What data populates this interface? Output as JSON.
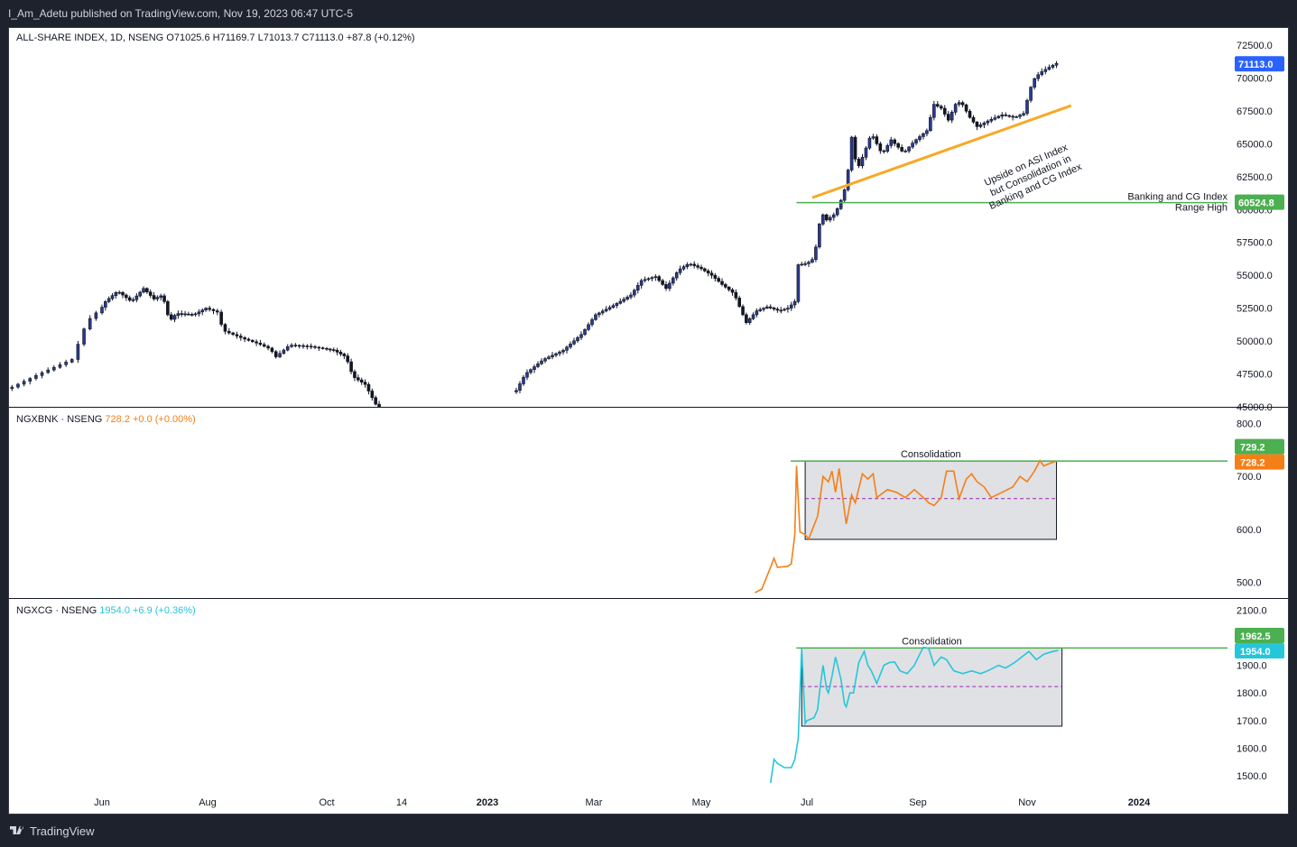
{
  "header": {
    "published": "I_Am_Adetu published on TradingView.com, Nov 19, 2023 06:47 UTC-5"
  },
  "footer": {
    "brand": "TradingView"
  },
  "colors": {
    "candle": "#131722",
    "candle_up_body": "#2a3a8f",
    "bank_line": "#f57f17",
    "cg_line": "#26c6da",
    "range_line": "#4caf50",
    "consolidation_fill": "#e0e1e4",
    "consolidation_mid": "#9c27b0",
    "trend_line": "#f9a825",
    "range_label": "#2962ff"
  },
  "chart_data": [
    {
      "type": "candlestick",
      "title": "ALL-SHARE INDEX, 1D, NSENG",
      "ohlc_text": [
        "O71025.6",
        "H71169.7",
        "L71013.7",
        "C71113.0",
        "+87.8 (+0.12%)"
      ],
      "x_ticks": [
        "Jun",
        "Aug",
        "Oct",
        "14",
        "2023",
        "Mar",
        "May",
        "Jul",
        "Sep",
        "Nov",
        "2024"
      ],
      "y_ticks": [
        "72500.0",
        "70000.0",
        "67500.0",
        "65000.0",
        "62500.0",
        "60000.0",
        "57500.0",
        "55000.0",
        "52500.0",
        "50000.0",
        "47500.0",
        "45000.0"
      ],
      "ylim": [
        45000,
        73500
      ],
      "close_series": [
        [
          "2022-05-02",
          46500
        ],
        [
          "2022-05-12",
          47600
        ],
        [
          "2022-05-22",
          48600
        ],
        [
          "2022-05-27",
          51500
        ],
        [
          "2022-06-03",
          53000
        ],
        [
          "2022-06-10",
          53800
        ],
        [
          "2022-06-18",
          53000
        ],
        [
          "2022-06-25",
          54000
        ],
        [
          "2022-07-01",
          53200
        ],
        [
          "2022-07-06",
          53500
        ],
        [
          "2022-07-10",
          51500
        ],
        [
          "2022-07-14",
          52100
        ],
        [
          "2022-07-24",
          52000
        ],
        [
          "2022-07-31",
          52500
        ],
        [
          "2022-08-06",
          52200
        ],
        [
          "2022-08-09",
          50800
        ],
        [
          "2022-08-14",
          50500
        ],
        [
          "2022-08-19",
          50200
        ],
        [
          "2022-08-27",
          49800
        ],
        [
          "2022-09-02",
          49400
        ],
        [
          "2022-09-05",
          48800
        ],
        [
          "2022-09-12",
          49700
        ],
        [
          "2022-09-22",
          49600
        ],
        [
          "2022-10-05",
          49300
        ],
        [
          "2022-10-12",
          48800
        ],
        [
          "2022-10-16",
          47300
        ],
        [
          "2022-10-23",
          46700
        ],
        [
          "2022-10-29",
          45200
        ],
        [
          "2022-11-01",
          44500
        ],
        [
          "2023-01-16",
          46000
        ],
        [
          "2023-01-22",
          47500
        ],
        [
          "2023-02-01",
          48600
        ],
        [
          "2023-02-12",
          49300
        ],
        [
          "2023-02-22",
          50500
        ],
        [
          "2023-03-02",
          52000
        ],
        [
          "2023-03-12",
          52700
        ],
        [
          "2023-03-22",
          53500
        ],
        [
          "2023-03-28",
          54600
        ],
        [
          "2023-04-05",
          54900
        ],
        [
          "2023-04-11",
          54000
        ],
        [
          "2023-04-18",
          55400
        ],
        [
          "2023-04-24",
          55900
        ],
        [
          "2023-05-01",
          55500
        ],
        [
          "2023-05-07",
          55000
        ],
        [
          "2023-05-13",
          54300
        ],
        [
          "2023-05-20",
          53600
        ],
        [
          "2023-05-24",
          52300
        ],
        [
          "2023-05-27",
          51400
        ],
        [
          "2023-06-02",
          52300
        ],
        [
          "2023-06-08",
          52600
        ],
        [
          "2023-06-15",
          52300
        ],
        [
          "2023-06-20",
          52500
        ],
        [
          "2023-06-24",
          53000
        ],
        [
          "2023-06-26",
          55800
        ],
        [
          "2023-07-01",
          55900
        ],
        [
          "2023-07-05",
          56300
        ],
        [
          "2023-07-07",
          58000
        ],
        [
          "2023-07-09",
          59800
        ],
        [
          "2023-07-12",
          59200
        ],
        [
          "2023-07-16",
          59600
        ],
        [
          "2023-07-19",
          60300
        ],
        [
          "2023-07-22",
          61500
        ],
        [
          "2023-07-24",
          63000
        ],
        [
          "2023-07-26",
          65500
        ],
        [
          "2023-07-29",
          63000
        ],
        [
          "2023-08-02",
          64300
        ],
        [
          "2023-08-06",
          65800
        ],
        [
          "2023-08-12",
          64200
        ],
        [
          "2023-08-17",
          65300
        ],
        [
          "2023-08-24",
          64300
        ],
        [
          "2023-08-30",
          65200
        ],
        [
          "2023-09-06",
          66000
        ],
        [
          "2023-09-10",
          68000
        ],
        [
          "2023-09-14",
          67700
        ],
        [
          "2023-09-18",
          66800
        ],
        [
          "2023-09-22",
          68000
        ],
        [
          "2023-09-25",
          68200
        ],
        [
          "2023-09-30",
          67000
        ],
        [
          "2023-10-04",
          66300
        ],
        [
          "2023-10-11",
          66800
        ],
        [
          "2023-10-18",
          67200
        ],
        [
          "2023-10-25",
          67000
        ],
        [
          "2023-10-30",
          67300
        ],
        [
          "2023-11-04",
          69800
        ],
        [
          "2023-11-08",
          70400
        ],
        [
          "2023-11-14",
          70900
        ],
        [
          "2023-11-17",
          71113
        ]
      ],
      "last_value_label": "71113.0",
      "range_high_value": 60524.8,
      "range_high_label": "60524.8",
      "range_high_text": [
        "Banking and CG Index",
        "Range High"
      ],
      "annotation": [
        "Upside on ASI Index",
        "but Consolidation in",
        "Banking and CG Index"
      ]
    },
    {
      "type": "line",
      "title": "NGXBNK · NSENG",
      "value_text": "728.2",
      "change_text": "+0.0 (+0.00%)",
      "y_ticks": [
        "800.0",
        "700.0",
        "600.0",
        "500.0"
      ],
      "ylim": [
        470,
        830
      ],
      "series": [
        [
          "2023-06-01",
          480
        ],
        [
          "2023-06-05",
          487
        ],
        [
          "2023-06-09",
          520
        ],
        [
          "2023-06-12",
          545
        ],
        [
          "2023-06-14",
          528
        ],
        [
          "2023-06-20",
          530
        ],
        [
          "2023-06-22",
          535
        ],
        [
          "2023-06-24",
          590
        ],
        [
          "2023-06-25",
          720
        ],
        [
          "2023-06-27",
          595
        ],
        [
          "2023-06-30",
          590
        ],
        [
          "2023-07-02",
          582
        ],
        [
          "2023-07-07",
          625
        ],
        [
          "2023-07-10",
          700
        ],
        [
          "2023-07-13",
          690
        ],
        [
          "2023-07-15",
          710
        ],
        [
          "2023-07-17",
          670
        ],
        [
          "2023-07-19",
          715
        ],
        [
          "2023-07-21",
          660
        ],
        [
          "2023-07-23",
          610
        ],
        [
          "2023-07-26",
          665
        ],
        [
          "2023-07-28",
          650
        ],
        [
          "2023-08-01",
          705
        ],
        [
          "2023-08-04",
          695
        ],
        [
          "2023-08-07",
          705
        ],
        [
          "2023-08-09",
          660
        ],
        [
          "2023-08-15",
          675
        ],
        [
          "2023-08-20",
          670
        ],
        [
          "2023-08-25",
          660
        ],
        [
          "2023-08-30",
          675
        ],
        [
          "2023-09-04",
          660
        ],
        [
          "2023-09-07",
          650
        ],
        [
          "2023-09-10",
          645
        ],
        [
          "2023-09-14",
          660
        ],
        [
          "2023-09-17",
          710
        ],
        [
          "2023-09-21",
          710
        ],
        [
          "2023-09-24",
          658
        ],
        [
          "2023-09-28",
          695
        ],
        [
          "2023-10-01",
          705
        ],
        [
          "2023-10-04",
          690
        ],
        [
          "2023-10-08",
          680
        ],
        [
          "2023-10-12",
          660
        ],
        [
          "2023-10-18",
          670
        ],
        [
          "2023-10-24",
          680
        ],
        [
          "2023-10-28",
          700
        ],
        [
          "2023-11-01",
          690
        ],
        [
          "2023-11-05",
          710
        ],
        [
          "2023-11-08",
          730
        ],
        [
          "2023-11-10",
          720
        ],
        [
          "2023-11-16",
          728.2
        ],
        [
          "2023-11-17",
          728.2
        ]
      ],
      "box": {
        "x0": "2023-06-30",
        "x1": "2023-11-17",
        "y0": 581,
        "y1": 729.2,
        "mid": 658
      },
      "box_label": "Consolidation",
      "range_line_value": 729.2,
      "range_label": "729.2",
      "last_label": "728.2"
    },
    {
      "type": "line",
      "title": "NGXCG · NSENG",
      "value_text": "1954.0",
      "change_text": "+6.9 (+0.36%)",
      "y_ticks": [
        "2100.0",
        "1900.0",
        "1800.0",
        "1700.0",
        "1600.0",
        "1500.0"
      ],
      "ylim": [
        1455,
        2140
      ],
      "series": [
        [
          "2023-06-10",
          1475
        ],
        [
          "2023-06-12",
          1560
        ],
        [
          "2023-06-14",
          1545
        ],
        [
          "2023-06-18",
          1530
        ],
        [
          "2023-06-22",
          1530
        ],
        [
          "2023-06-24",
          1560
        ],
        [
          "2023-06-26",
          1635
        ],
        [
          "2023-06-28",
          1962.5
        ],
        [
          "2023-06-30",
          1690
        ],
        [
          "2023-07-01",
          1700
        ],
        [
          "2023-07-05",
          1710
        ],
        [
          "2023-07-07",
          1740
        ],
        [
          "2023-07-08",
          1800
        ],
        [
          "2023-07-10",
          1900
        ],
        [
          "2023-07-12",
          1815
        ],
        [
          "2023-07-13",
          1800
        ],
        [
          "2023-07-15",
          1860
        ],
        [
          "2023-07-17",
          1930
        ],
        [
          "2023-07-20",
          1850
        ],
        [
          "2023-07-22",
          1760
        ],
        [
          "2023-07-23",
          1750
        ],
        [
          "2023-07-25",
          1800
        ],
        [
          "2023-07-27",
          1800
        ],
        [
          "2023-07-30",
          1910
        ],
        [
          "2023-08-02",
          1950
        ],
        [
          "2023-08-04",
          1900
        ],
        [
          "2023-08-06",
          1880
        ],
        [
          "2023-08-09",
          1835
        ],
        [
          "2023-08-13",
          1900
        ],
        [
          "2023-08-16",
          1910
        ],
        [
          "2023-08-19",
          1912
        ],
        [
          "2023-08-22",
          1880
        ],
        [
          "2023-08-26",
          1870
        ],
        [
          "2023-08-30",
          1900
        ],
        [
          "2023-09-02",
          1940
        ],
        [
          "2023-09-04",
          1965
        ],
        [
          "2023-09-07",
          1962
        ],
        [
          "2023-09-10",
          1900
        ],
        [
          "2023-09-14",
          1930
        ],
        [
          "2023-09-17",
          1920
        ],
        [
          "2023-09-21",
          1880
        ],
        [
          "2023-09-26",
          1870
        ],
        [
          "2023-10-01",
          1880
        ],
        [
          "2023-10-06",
          1870
        ],
        [
          "2023-10-10",
          1880
        ],
        [
          "2023-10-16",
          1900
        ],
        [
          "2023-10-20",
          1890
        ],
        [
          "2023-10-25",
          1910
        ],
        [
          "2023-10-29",
          1930
        ],
        [
          "2023-11-02",
          1950
        ],
        [
          "2023-11-06",
          1920
        ],
        [
          "2023-11-10",
          1940
        ],
        [
          "2023-11-15",
          1950
        ],
        [
          "2023-11-18",
          1954
        ]
      ],
      "box": {
        "x0": "2023-06-28",
        "x1": "2023-11-20",
        "y0": 1680,
        "y1": 1962.5,
        "mid": 1823
      },
      "box_label": "Consolidation",
      "range_line_value": 1962.5,
      "range_label": "1962.5",
      "last_label": "1954.0"
    }
  ]
}
